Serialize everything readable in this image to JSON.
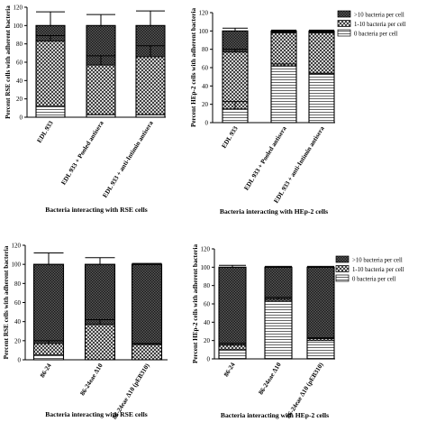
{
  "colors": {
    "ink": "#000000",
    "background": "#ffffff"
  },
  "chart_data": [
    {
      "type": "bar",
      "stacked": true,
      "xlabel": "Bacteria interacting with RSE cells",
      "ylabel": "Percent RSE cells with adherent bacteria",
      "ylim": [
        0,
        120
      ],
      "yticks": [
        0,
        20,
        40,
        60,
        80,
        100,
        120
      ],
      "categories": [
        "EDL 933",
        "EDL 933 + Pooled antisera",
        "EDL 933 + anti-Intimin antisera"
      ],
      "series": [
        {
          "name": "0 bacteria per cell",
          "pattern": "hlines",
          "values": [
            12,
            3,
            3
          ]
        },
        {
          "name": "1-10 bacteria per cell",
          "pattern": "crosshatch",
          "values": [
            71,
            54,
            63
          ]
        },
        {
          "name": ">10 bacteria per cell",
          "pattern": "dense",
          "values": [
            17,
            43,
            34
          ]
        }
      ],
      "error_bars": [
        {
          "series": 2,
          "top": [
            99,
            99,
            99
          ],
          "plus": [
            16,
            13,
            17
          ]
        },
        {
          "series": 1,
          "top": [
            83,
            57,
            66
          ],
          "plus": [
            6,
            10,
            12
          ]
        }
      ]
    },
    {
      "type": "bar",
      "stacked": true,
      "xlabel": "Bacteria interacting with HEp-2 cells",
      "ylabel": "Percent HEp-2 cells with adherent bacteria",
      "ylim": [
        0,
        120
      ],
      "yticks": [
        0,
        20,
        40,
        60,
        80,
        100,
        120
      ],
      "categories": [
        "EDL 933",
        "EDL 933 + Pooled antisera",
        "EDL 933 + anti-Intimin antisera"
      ],
      "legend": {
        "position": "top-right",
        "entries": [
          ">10 bacteria per cell",
          "1-10 bacteria per cell",
          "0 bacteria per cell"
        ]
      },
      "series": [
        {
          "name": "0 bacteria per cell",
          "pattern": "hlines",
          "values": [
            15,
            62,
            53
          ]
        },
        {
          "name": "1-10 bacteria per cell",
          "pattern": "crosshatch",
          "values": [
            62,
            36,
            45
          ]
        },
        {
          "name": ">10 bacteria per cell",
          "pattern": "dense",
          "values": [
            23,
            2,
            2
          ]
        }
      ],
      "error_bars": [
        {
          "series": 2,
          "top": [
            100,
            100,
            100
          ],
          "plus": [
            3,
            1,
            1
          ]
        },
        {
          "series": 1,
          "top": [
            77,
            98,
            98
          ],
          "plus": [
            3,
            1,
            1
          ]
        },
        {
          "series": 0,
          "top": [
            15,
            62,
            53
          ],
          "plus": [
            8,
            2,
            1
          ]
        }
      ]
    },
    {
      "type": "bar",
      "stacked": true,
      "xlabel": "Bacteria interacting with RSE cells",
      "ylabel": "Percent RSE cells with adherent bacteria",
      "ylim": [
        0,
        120
      ],
      "yticks": [
        0,
        20,
        40,
        60,
        80,
        100,
        120
      ],
      "categories": [
        "86-24",
        "86-24eae Δ10",
        "86-24eae Δ10 (pEB310)"
      ],
      "series": [
        {
          "name": "0 bacteria per cell",
          "pattern": "hlines",
          "values": [
            5,
            0,
            0
          ]
        },
        {
          "name": "1-10 bacteria per cell",
          "pattern": "crosshatch",
          "values": [
            12,
            37,
            16
          ]
        },
        {
          "name": ">10 bacteria per cell",
          "pattern": "dense",
          "values": [
            83,
            63,
            84
          ]
        }
      ],
      "error_bars": [
        {
          "series": 2,
          "top": [
            100,
            100,
            100
          ],
          "plus": [
            12,
            7,
            1
          ]
        },
        {
          "series": 1,
          "top": [
            17,
            37,
            16
          ],
          "plus": [
            3,
            5,
            1
          ]
        }
      ]
    },
    {
      "type": "bar",
      "stacked": true,
      "xlabel": "Bacteria interacting with HEp-2 cells",
      "ylabel": "Percent HEp-2 cells with adherent bacteria",
      "ylim": [
        0,
        120
      ],
      "yticks": [
        0,
        20,
        40,
        60,
        80,
        100,
        120
      ],
      "categories": [
        "86-24",
        "86-24eae Δ10",
        "86-24eae Δ10 (pEB310)"
      ],
      "legend": {
        "position": "top-right",
        "entries": [
          ">10 bacteria per cell",
          "1-10 bacteria per cell",
          "0 bacteria per cell"
        ]
      },
      "series": [
        {
          "name": "0 bacteria per cell",
          "pattern": "hlines",
          "values": [
            10,
            63,
            20
          ]
        },
        {
          "name": "1-10 bacteria per cell",
          "pattern": "crosshatch",
          "values": [
            5,
            2,
            2
          ]
        },
        {
          "name": ">10 bacteria per cell",
          "pattern": "dense",
          "values": [
            85,
            35,
            78
          ]
        }
      ],
      "error_bars": [
        {
          "series": 2,
          "top": [
            100,
            100,
            100
          ],
          "plus": [
            2,
            1,
            1
          ]
        },
        {
          "series": 1,
          "top": [
            15,
            65,
            22
          ],
          "plus": [
            2,
            2,
            1
          ]
        }
      ]
    }
  ]
}
